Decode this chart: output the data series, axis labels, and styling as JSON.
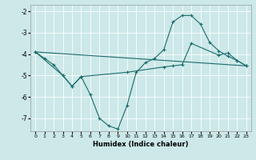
{
  "xlabel": "Humidex (Indice chaleur)",
  "bg_color": "#cce8e8",
  "grid_color": "#ffffff",
  "line_color": "#1a6b6b",
  "xlim": [
    -0.5,
    23.5
  ],
  "ylim": [
    -7.6,
    -1.7
  ],
  "xticks": [
    0,
    1,
    2,
    3,
    4,
    5,
    6,
    7,
    8,
    9,
    10,
    11,
    12,
    13,
    14,
    15,
    16,
    17,
    18,
    19,
    20,
    21,
    22,
    23
  ],
  "yticks": [
    -7,
    -6,
    -5,
    -4,
    -3,
    -2
  ],
  "line1_x": [
    0,
    1,
    2,
    3,
    4,
    5,
    6,
    7,
    8,
    9,
    10,
    11,
    12,
    13,
    14,
    15,
    16,
    17,
    18,
    19,
    20,
    21,
    22,
    23
  ],
  "line1_y": [
    -3.9,
    -4.2,
    -4.5,
    -5.0,
    -5.5,
    -5.05,
    -5.9,
    -7.0,
    -7.35,
    -7.5,
    -6.4,
    -4.85,
    -4.4,
    -4.2,
    -3.8,
    -2.5,
    -2.2,
    -2.2,
    -2.6,
    -3.45,
    -3.85,
    -4.1,
    -4.3,
    -4.55
  ],
  "line2_x": [
    0,
    3,
    4,
    5,
    10,
    14,
    15,
    16,
    17,
    20,
    21,
    22,
    23
  ],
  "line2_y": [
    -3.9,
    -5.0,
    -5.5,
    -5.05,
    -4.85,
    -4.6,
    -4.55,
    -4.5,
    -3.5,
    -4.05,
    -3.95,
    -4.3,
    -4.55
  ],
  "line3_x": [
    0,
    23
  ],
  "line3_y": [
    -3.9,
    -4.55
  ]
}
